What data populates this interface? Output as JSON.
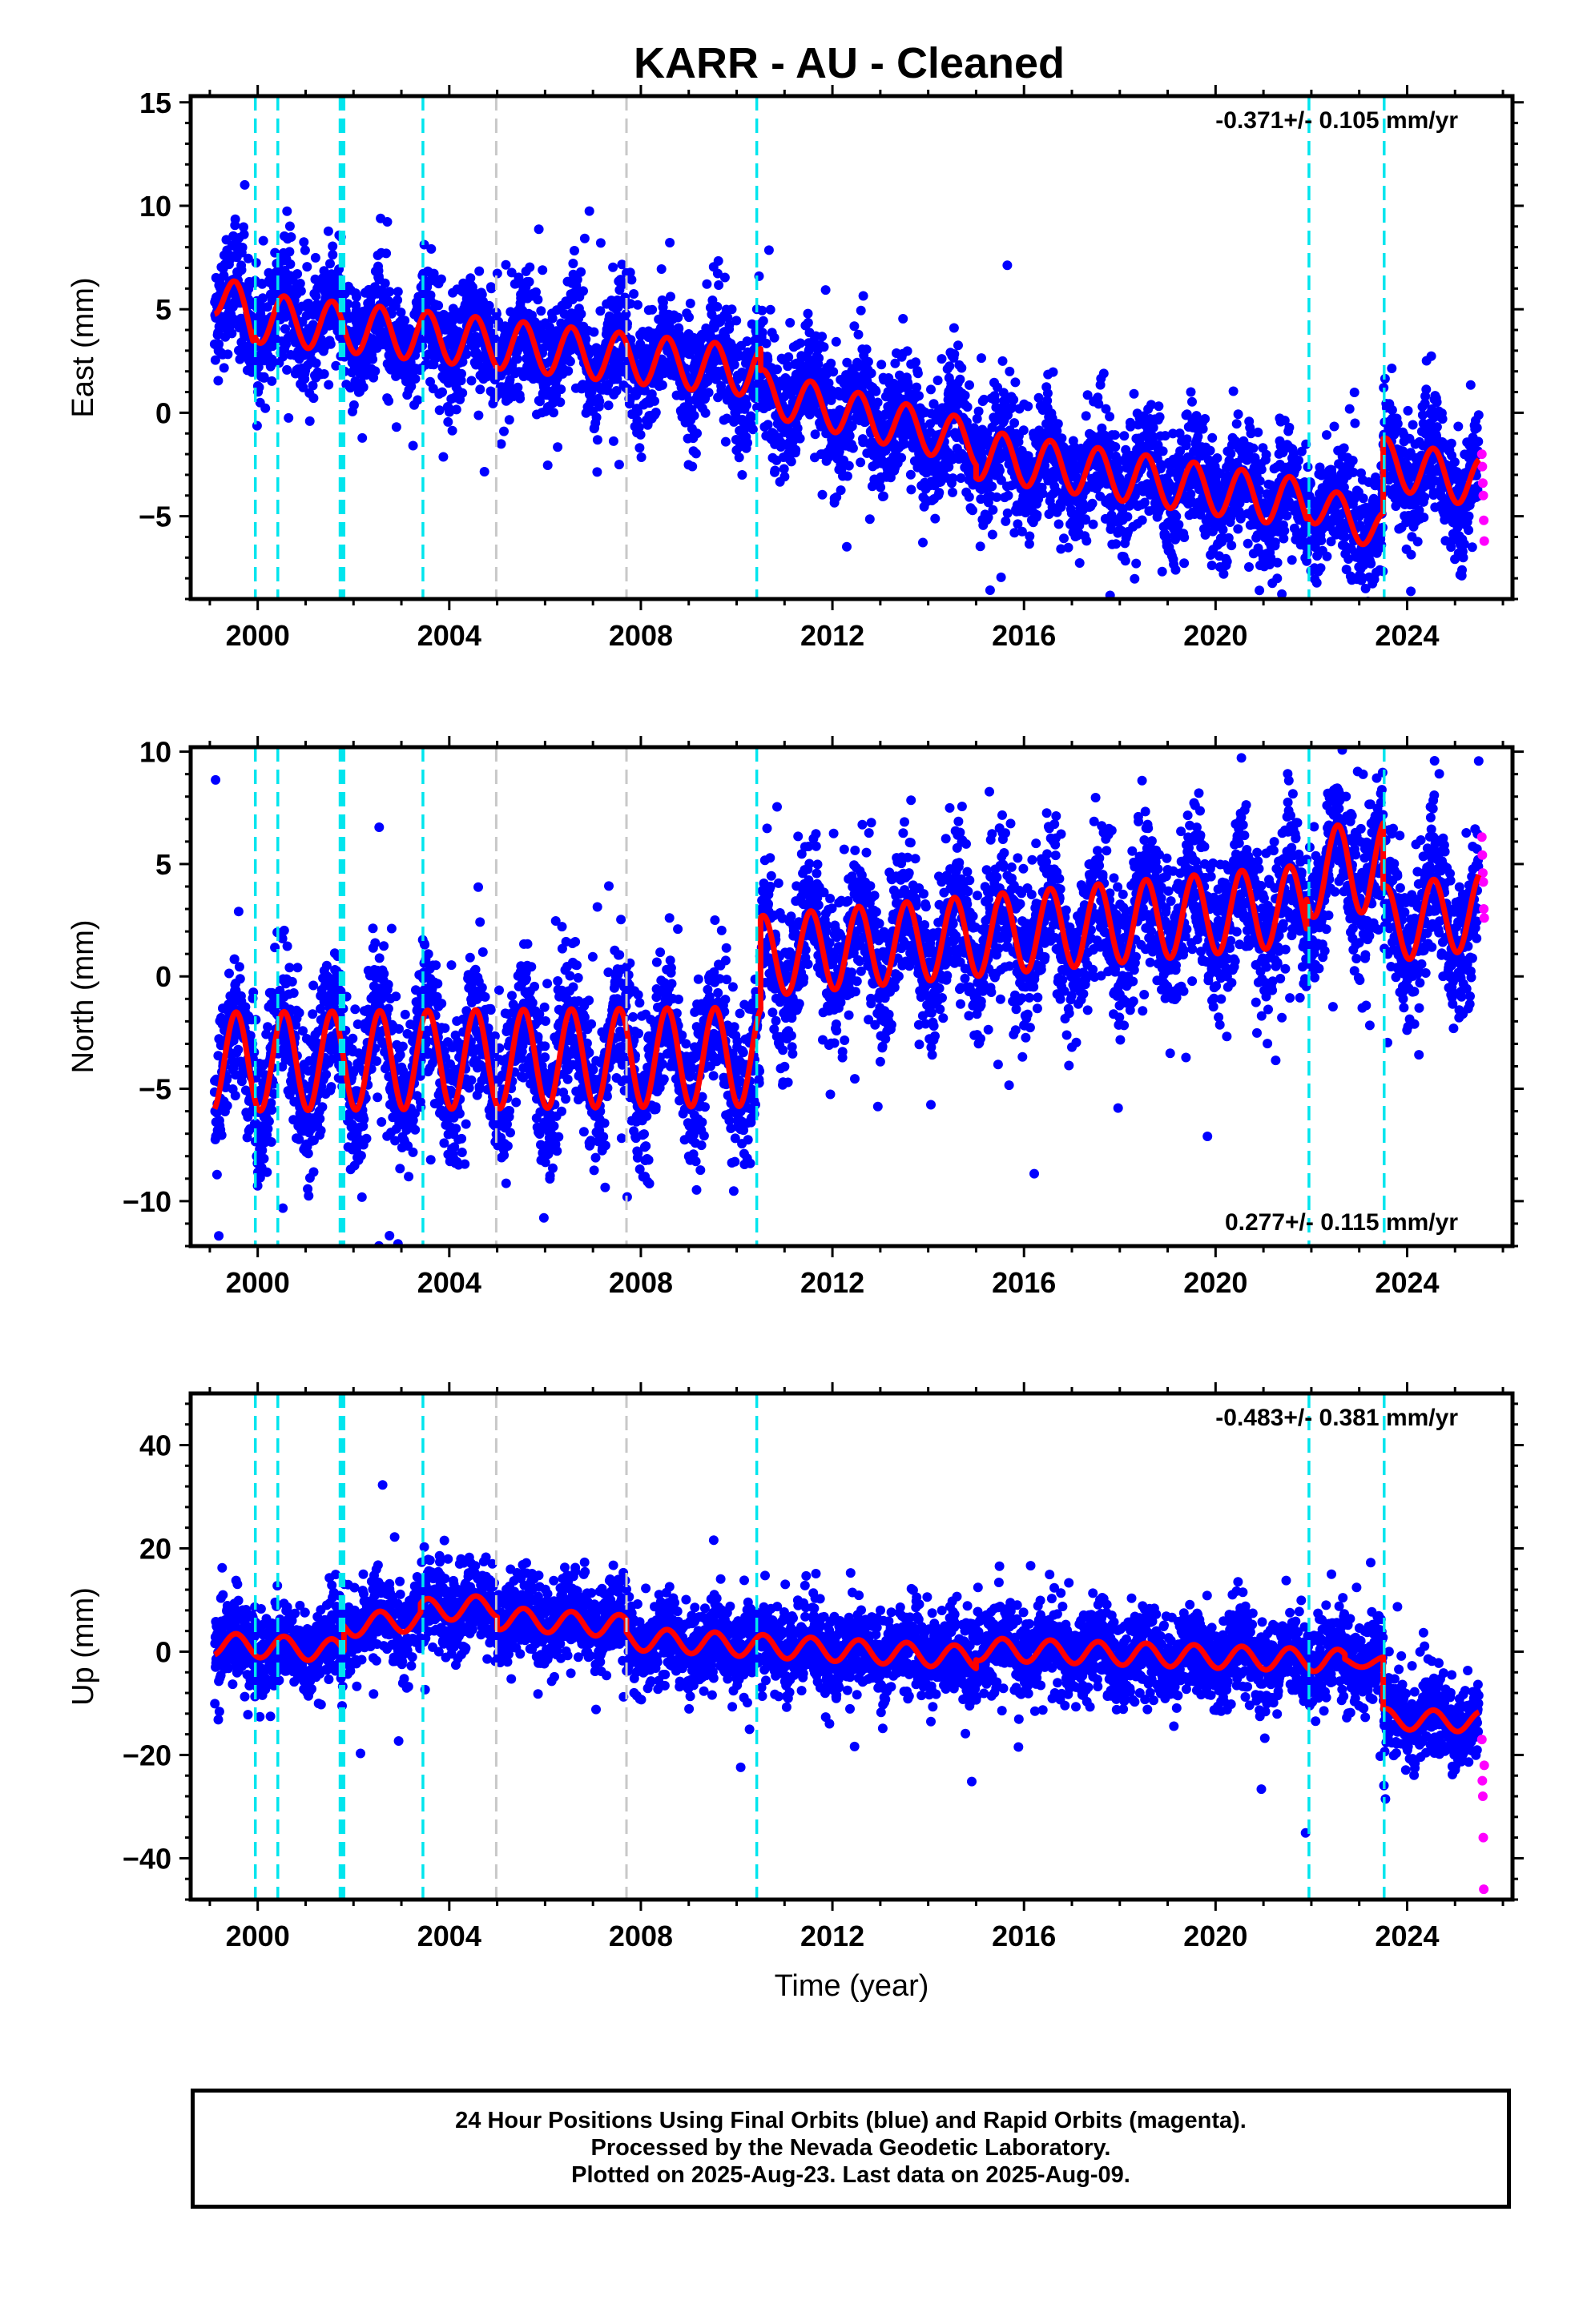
{
  "title": "KARR  - AU - Cleaned",
  "footer": {
    "line1": "24 Hour Positions Using Final Orbits (blue) and Rapid Orbits (magenta).",
    "line2": "Processed by the Nevada Geodetic Laboratory.",
    "line3": "Plotted on 2025-Aug-23. Last data on 2025-Aug-09."
  },
  "colors": {
    "final_orbits": "#0000ff",
    "rapid_orbits": "#ff00ff",
    "model": "#ff0000",
    "equipment_change": "#00e5ee",
    "earthquake": "#c8c8c8"
  },
  "chart_data": [
    {
      "type": "scatter",
      "component": "east",
      "ylabel": "East (mm)",
      "xlabel": "",
      "xlim": [
        1998.6,
        2026.2
      ],
      "ylim": [
        -9,
        15.3
      ],
      "xticks": [
        2000,
        2004,
        2008,
        2012,
        2016,
        2020,
        2024
      ],
      "yticks": [
        -5,
        0,
        5,
        10,
        15
      ],
      "grid": false,
      "rate_text": "-0.371+/- 0.105 mm/yr",
      "rate_position": "top-right",
      "series": [
        {
          "role": "final_orbits",
          "x_range": [
            1999.1,
            2025.5
          ],
          "mean_start": 5.8,
          "mean_end": -3.0,
          "seasonal_amplitude": 1.2,
          "scatter": 1.4
        },
        {
          "role": "rapid_orbits",
          "x": [
            2025.56,
            2025.57,
            2025.58,
            2025.59,
            2025.6,
            2025.61
          ],
          "values": [
            -2.0,
            -2.6,
            -3.4,
            -4.0,
            -5.2,
            -6.2
          ]
        }
      ],
      "model_segments": [
        {
          "x": [
            1999.1,
            1999.9
          ],
          "offset": 6.0,
          "rate": -2.2,
          "amp": 1.3
        },
        {
          "x": [
            1999.9,
            2010.5
          ],
          "offset": 4.6,
          "rate": -0.25,
          "amp": 1.2
        },
        {
          "x": [
            2010.5,
            2015.0
          ],
          "offset": 1.0,
          "rate": -0.55,
          "amp": 1.1
        },
        {
          "x": [
            2015.0,
            2021.9
          ],
          "offset": -2.0,
          "rate": -0.35,
          "amp": 1.2
        },
        {
          "x": [
            2021.9,
            2023.5
          ],
          "offset": -4.2,
          "rate": -1.0,
          "amp": 1.0
        },
        {
          "x": [
            2023.5,
            2025.5
          ],
          "offset": -2.4,
          "rate": -0.5,
          "amp": 1.2
        }
      ]
    },
    {
      "type": "scatter",
      "component": "north",
      "ylabel": "North (mm)",
      "xlabel": "",
      "xlim": [
        1998.6,
        2026.2
      ],
      "ylim": [
        -12,
        10.2
      ],
      "xticks": [
        2000,
        2004,
        2008,
        2012,
        2016,
        2020,
        2024
      ],
      "yticks": [
        -10,
        -5,
        0,
        5,
        10
      ],
      "grid": false,
      "rate_text": "0.277+/- 0.115 mm/yr",
      "rate_position": "bottom-right",
      "series": [
        {
          "role": "final_orbits",
          "x_range": [
            1999.1,
            2025.5
          ],
          "mean_start": -3.5,
          "mean_end": 3.0,
          "seasonal_amplitude": 1.8,
          "scatter": 1.6
        },
        {
          "role": "rapid_orbits",
          "x": [
            2025.56,
            2025.57,
            2025.58,
            2025.59,
            2025.6,
            2025.61
          ],
          "values": [
            6.2,
            5.4,
            4.6,
            4.2,
            3.0,
            2.6
          ]
        }
      ],
      "model_segments": [
        {
          "x": [
            1999.1,
            2010.5
          ],
          "offset": -3.8,
          "rate": 0.02,
          "amp": 2.2
        },
        {
          "x": [
            2010.5,
            2021.9
          ],
          "offset": 0.9,
          "rate": 0.2,
          "amp": 1.8
        },
        {
          "x": [
            2021.9,
            2023.5
          ],
          "offset": 4.6,
          "rate": 0.2,
          "amp": 2.0
        },
        {
          "x": [
            2023.5,
            2025.5
          ],
          "offset": 2.3,
          "rate": 0.3,
          "amp": 1.7
        }
      ]
    },
    {
      "type": "scatter",
      "component": "up",
      "ylabel": "Up (mm)",
      "xlabel": "Time (year)",
      "xlim": [
        1998.6,
        2026.2
      ],
      "ylim": [
        -48,
        50
      ],
      "xticks": [
        2000,
        2004,
        2008,
        2012,
        2016,
        2020,
        2024
      ],
      "yticks": [
        -40,
        -20,
        0,
        20,
        40
      ],
      "grid": false,
      "rate_text": "-0.483+/- 0.381 mm/yr",
      "rate_position": "top-right",
      "series": [
        {
          "role": "final_orbits",
          "x_range": [
            1999.1,
            2025.5
          ],
          "mean_start": 2.0,
          "mean_end": -14.0,
          "seasonal_amplitude": 2.0,
          "scatter": 4.0
        },
        {
          "role": "rapid_orbits",
          "x": [
            2025.56,
            2025.57,
            2025.58,
            2025.59,
            2025.6,
            2025.61
          ],
          "values": [
            -17,
            -25,
            -28,
            -36,
            -46,
            -22
          ]
        }
      ],
      "model_segments": [
        {
          "x": [
            1999.1,
            2001.8
          ],
          "offset": 1.5,
          "rate": -0.5,
          "amp": 2.2
        },
        {
          "x": [
            2001.8,
            2003.4
          ],
          "offset": 5.0,
          "rate": 0.8,
          "amp": 2.2
        },
        {
          "x": [
            2003.4,
            2005.0
          ],
          "offset": 8.0,
          "rate": 0.5,
          "amp": 2.2
        },
        {
          "x": [
            2005.0,
            2007.7
          ],
          "offset": 6.5,
          "rate": -0.6,
          "amp": 2.2
        },
        {
          "x": [
            2007.7,
            2015.0
          ],
          "offset": 2.5,
          "rate": -0.5,
          "amp": 2.2
        },
        {
          "x": [
            2015.0,
            2022.7
          ],
          "offset": 0.5,
          "rate": -0.3,
          "amp": 2.2
        },
        {
          "x": [
            2022.7,
            2023.5
          ],
          "offset": -2.0,
          "rate": 0.0,
          "amp": 1.0
        },
        {
          "x": [
            2023.5,
            2025.5
          ],
          "offset": -13.0,
          "rate": -0.3,
          "amp": 2.0
        }
      ]
    }
  ],
  "events": {
    "equipment_change_years": [
      1999.95,
      2000.42,
      2001.72,
      2001.76,
      2001.8,
      2003.45,
      2010.42,
      2021.95,
      2023.52
    ],
    "earthquake_years": [
      2004.98,
      2007.7
    ]
  }
}
